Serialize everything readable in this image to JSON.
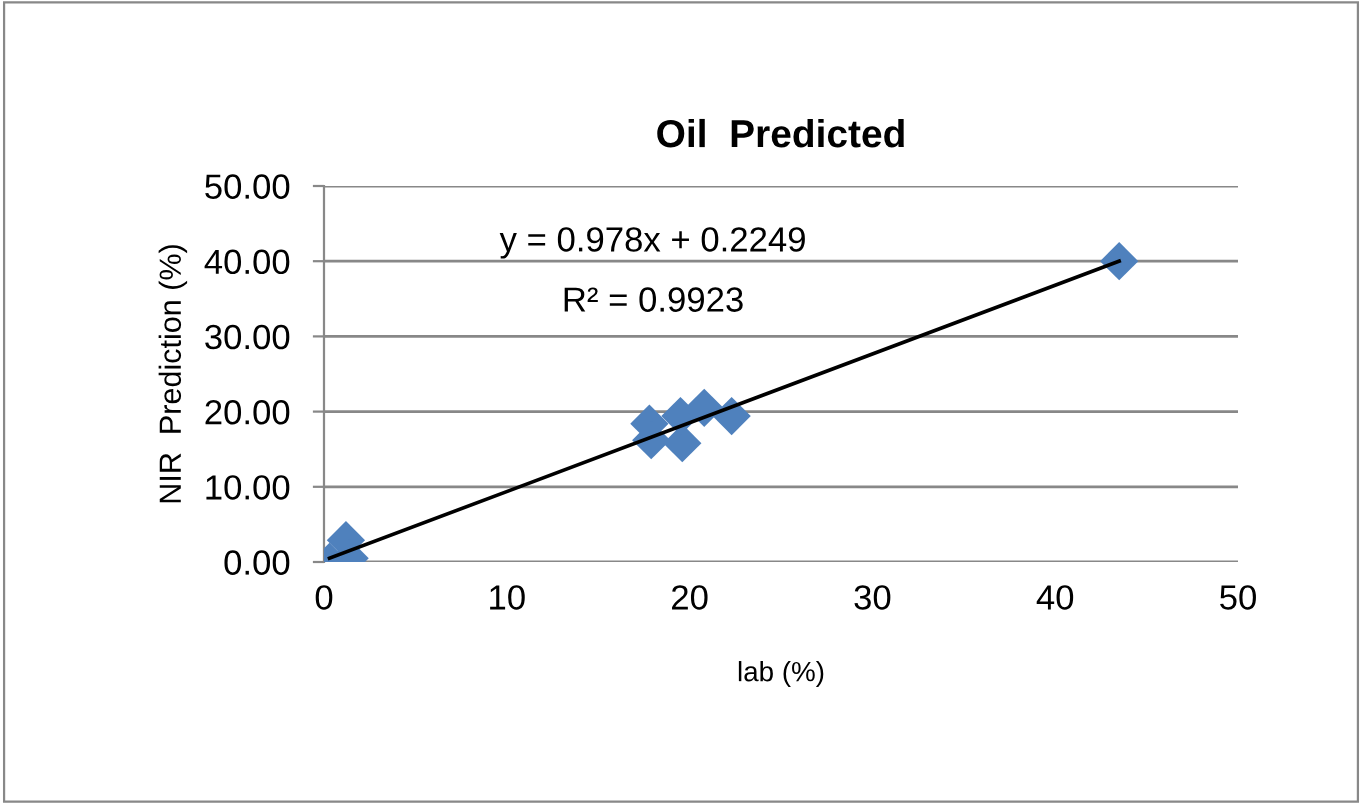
{
  "chart_data": {
    "type": "scatter",
    "title": "Oil  Predicted",
    "xlabel": "lab (%)",
    "ylabel": "NIR  Prediction (%)",
    "xlim": [
      0,
      50
    ],
    "xticks": [
      0,
      10,
      20,
      30,
      40,
      50
    ],
    "ylim": [
      0,
      50
    ],
    "yticks": [
      {
        "value": 0,
        "label": "0.00"
      },
      {
        "value": 10,
        "label": "10.00"
      },
      {
        "value": 20,
        "label": "20.00"
      },
      {
        "value": 30,
        "label": "30.00"
      },
      {
        "value": 40,
        "label": "40.00"
      },
      {
        "value": 50,
        "label": "50.00"
      }
    ],
    "grid": "y",
    "series": [
      {
        "marker": "diamond",
        "color": "#4f81bd",
        "x": [
          0.3,
          1.2,
          1.4,
          17.8,
          17.9,
          19.6,
          19.5,
          20.8,
          22.3,
          43.5
        ],
        "values": [
          0.0,
          2.9,
          0.5,
          18.4,
          16.2,
          15.8,
          19.4,
          20.5,
          19.4,
          40.0
        ]
      },
      {
        "type": "line",
        "marker": "none",
        "color": "#000000",
        "x": [
          0.3,
          43.5
        ],
        "values": [
          0.5,
          40.0
        ]
      }
    ],
    "annotations": [
      "y = 0.978x + 0.2249",
      "R² = 0.9923"
    ]
  }
}
